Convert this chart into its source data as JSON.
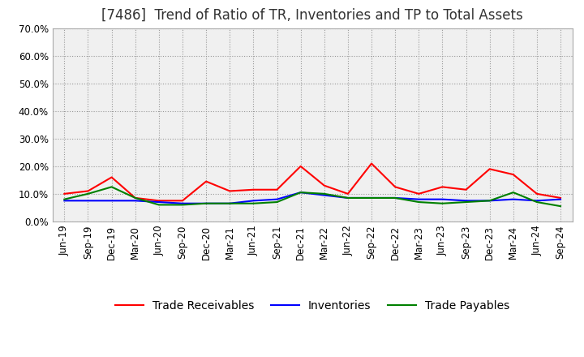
{
  "title": "[7486]  Trend of Ratio of TR, Inventories and TP to Total Assets",
  "x_labels": [
    "Jun-19",
    "Sep-19",
    "Dec-19",
    "Mar-20",
    "Jun-20",
    "Sep-20",
    "Dec-20",
    "Mar-21",
    "Jun-21",
    "Sep-21",
    "Dec-21",
    "Mar-22",
    "Jun-22",
    "Sep-22",
    "Dec-22",
    "Mar-23",
    "Jun-23",
    "Sep-23",
    "Dec-23",
    "Mar-24",
    "Jun-24",
    "Sep-24"
  ],
  "trade_receivables": [
    0.1,
    0.11,
    0.16,
    0.085,
    0.075,
    0.075,
    0.145,
    0.11,
    0.115,
    0.115,
    0.2,
    0.13,
    0.1,
    0.21,
    0.125,
    0.1,
    0.125,
    0.115,
    0.19,
    0.17,
    0.1,
    0.085
  ],
  "inventories": [
    0.075,
    0.075,
    0.075,
    0.075,
    0.07,
    0.065,
    0.065,
    0.065,
    0.075,
    0.08,
    0.105,
    0.095,
    0.085,
    0.085,
    0.085,
    0.08,
    0.08,
    0.075,
    0.075,
    0.08,
    0.075,
    0.08
  ],
  "trade_payables": [
    0.08,
    0.1,
    0.125,
    0.085,
    0.06,
    0.06,
    0.065,
    0.065,
    0.065,
    0.07,
    0.105,
    0.1,
    0.085,
    0.085,
    0.085,
    0.07,
    0.065,
    0.07,
    0.075,
    0.105,
    0.07,
    0.055
  ],
  "tr_color": "#ff0000",
  "inv_color": "#0000ff",
  "tp_color": "#008000",
  "ylim": [
    0.0,
    0.7
  ],
  "yticks": [
    0.0,
    0.1,
    0.2,
    0.3,
    0.4,
    0.5,
    0.6,
    0.7
  ],
  "plot_bg_color": "#f0f0f0",
  "fig_bg_color": "#ffffff",
  "grid_color": "#999999",
  "title_fontsize": 12,
  "legend_fontsize": 10,
  "tick_fontsize": 8.5
}
